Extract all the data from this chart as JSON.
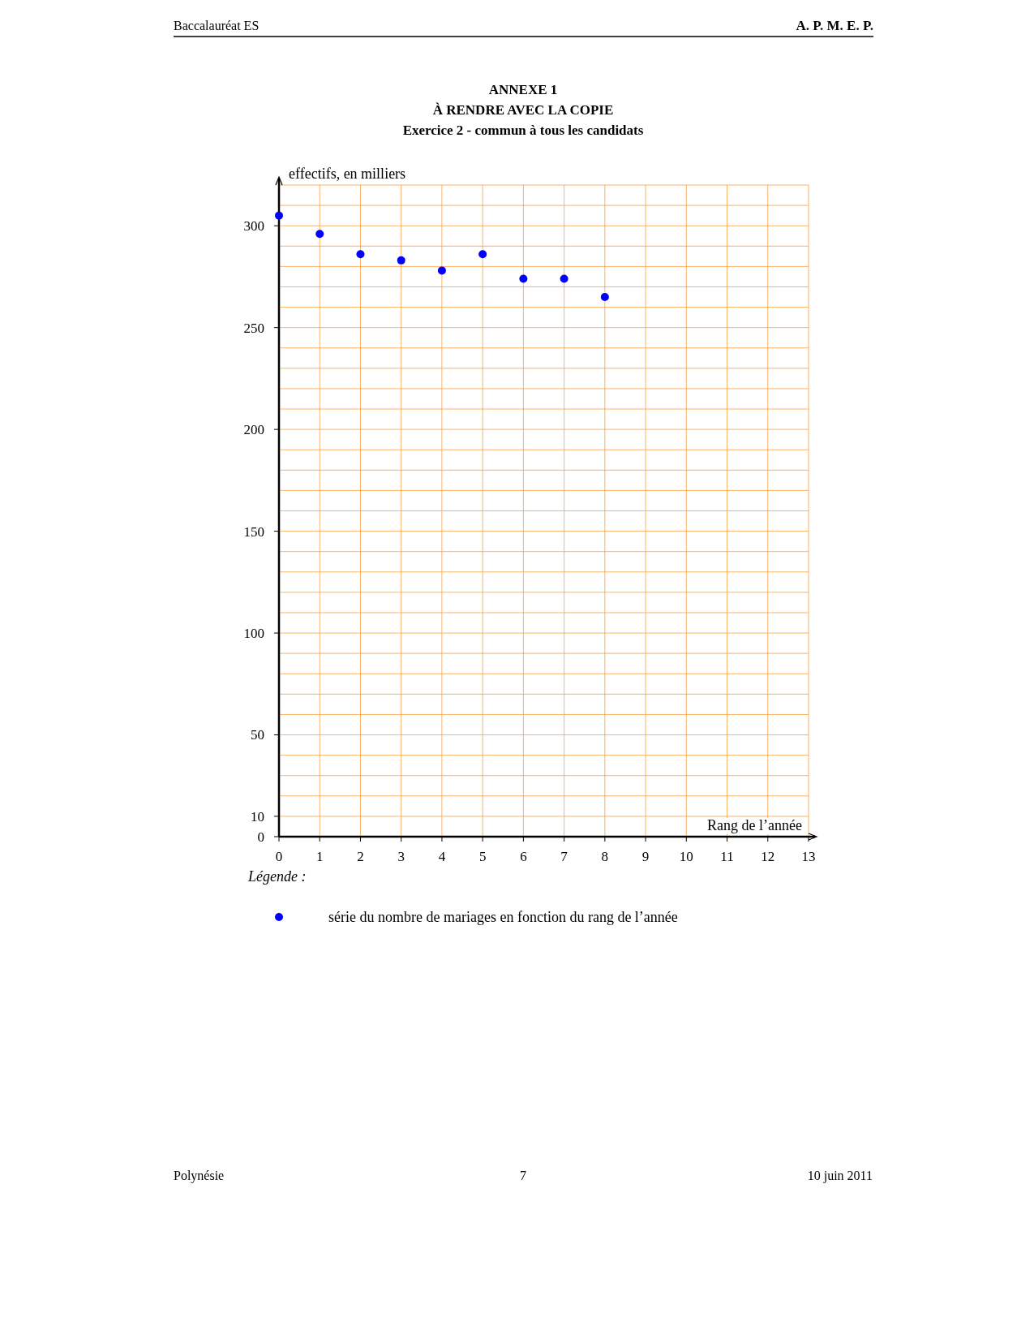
{
  "chart_data": {
    "type": "scatter",
    "title": "ANNEXE 1",
    "subtitle": "À RENDRE AVEC LA COPIE",
    "xlabel": "Rang de l’année",
    "ylabel": "effectifs, en milliers",
    "annotations": [
      "Baccalauréat ES",
      "A. P. M. E. P.",
      "Exercice 2 - commun à tous les candidats",
      "Légende :",
      "Polynésie",
      "7",
      "10 juin 2011"
    ],
    "x": [
      0,
      1,
      2,
      3,
      4,
      5,
      6,
      7,
      8
    ],
    "series": [
      {
        "name": "série du nombre de mariages en fonction du rang de l’année",
        "color": "#0000ff",
        "values": [
          305,
          296,
          286,
          283,
          278,
          286,
          274,
          274,
          265
        ]
      }
    ],
    "xlim": [
      0,
      13
    ],
    "xticks": [
      0,
      1,
      2,
      3,
      4,
      5,
      6,
      7,
      8,
      9,
      10,
      11,
      12,
      13
    ],
    "ylim": [
      0,
      320
    ],
    "yticks": [
      0,
      10,
      {
        "value": 20,
        "label": null
      },
      {
        "value": 30,
        "label": null
      },
      {
        "value": 40,
        "label": null
      },
      50,
      {
        "value": 60,
        "label": null
      },
      {
        "value": 70,
        "label": null
      },
      {
        "value": 80,
        "label": null
      },
      {
        "value": 90,
        "label": null
      },
      100,
      {
        "value": 110,
        "label": null
      },
      {
        "value": 120,
        "label": null
      },
      {
        "value": 130,
        "label": null
      },
      {
        "value": 140,
        "label": null
      },
      150,
      {
        "value": 160,
        "label": null
      },
      {
        "value": 170,
        "label": null
      },
      {
        "value": 180,
        "label": null
      },
      {
        "value": 190,
        "label": null
      },
      200,
      {
        "value": 210,
        "label": null
      },
      {
        "value": 220,
        "label": null
      },
      {
        "value": 230,
        "label": null
      },
      {
        "value": 240,
        "label": null
      },
      250,
      {
        "value": 260,
        "label": null
      },
      {
        "value": 270,
        "label": null
      },
      {
        "value": 280,
        "label": null
      },
      {
        "value": 290,
        "label": null
      },
      300,
      {
        "value": 310,
        "label": null
      },
      {
        "value": 320,
        "label": null
      }
    ],
    "grid": true,
    "marker": "circle",
    "legend": "bottom"
  }
}
